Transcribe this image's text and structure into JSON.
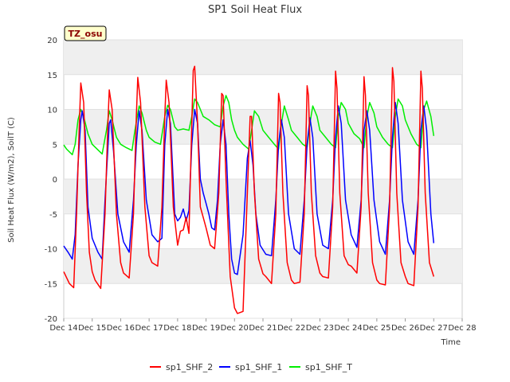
{
  "chart_data": {
    "type": "line",
    "title": "SP1 Soil Heat Flux",
    "xlabel": "Time",
    "ylabel": "Soil Heat Flux (W/m2), SoilT (C)",
    "ylim": [
      -20,
      20
    ],
    "xlim": [
      14,
      28
    ],
    "grid": "horizontal bands",
    "legend_position": "bottom",
    "badge": "TZ_osu",
    "x_ticks": [
      {
        "v": 14,
        "label": "Dec 14"
      },
      {
        "v": 15,
        "label": "Dec 15"
      },
      {
        "v": 16,
        "label": "Dec 16"
      },
      {
        "v": 17,
        "label": "Dec 17"
      },
      {
        "v": 18,
        "label": "Dec 18"
      },
      {
        "v": 19,
        "label": "Dec 19"
      },
      {
        "v": 20,
        "label": "Dec 20"
      },
      {
        "v": 21,
        "label": "Dec 21"
      },
      {
        "v": 22,
        "label": "Dec 22"
      },
      {
        "v": 23,
        "label": "Dec 23"
      },
      {
        "v": 24,
        "label": "Dec 24"
      },
      {
        "v": 25,
        "label": "Dec 25"
      },
      {
        "v": 26,
        "label": "Dec 26"
      },
      {
        "v": 27,
        "label": "Dec 27"
      },
      {
        "v": 28,
        "label": "Dec 28"
      }
    ],
    "y_ticks": [
      -20,
      -15,
      -10,
      -5,
      0,
      5,
      10,
      15,
      20
    ],
    "series": [
      {
        "name": "sp1_SHF_2",
        "color": "#ff0000",
        "x": [
          14.0,
          14.2,
          14.35,
          14.45,
          14.55,
          14.6,
          14.7,
          14.8,
          14.9,
          15.0,
          15.1,
          15.3,
          15.45,
          15.55,
          15.6,
          15.7,
          15.85,
          16.0,
          16.1,
          16.3,
          16.45,
          16.55,
          16.6,
          16.7,
          16.85,
          17.0,
          17.1,
          17.3,
          17.45,
          17.55,
          17.6,
          17.7,
          17.85,
          18.0,
          18.1,
          18.2,
          18.3,
          18.4,
          18.5,
          18.55,
          18.6,
          18.7,
          18.8,
          18.9,
          19.0,
          19.15,
          19.3,
          19.45,
          19.55,
          19.6,
          19.7,
          19.85,
          20.0,
          20.1,
          20.3,
          20.45,
          20.55,
          20.6,
          20.7,
          20.85,
          21.0,
          21.1,
          21.3,
          21.45,
          21.55,
          21.6,
          21.7,
          21.85,
          22.0,
          22.1,
          22.3,
          22.45,
          22.55,
          22.6,
          22.7,
          22.85,
          23.0,
          23.1,
          23.3,
          23.45,
          23.55,
          23.6,
          23.7,
          23.85,
          24.0,
          24.1,
          24.3,
          24.45,
          24.55,
          24.6,
          24.7,
          24.85,
          25.0,
          25.1,
          25.3,
          25.45,
          25.55,
          25.6,
          25.7,
          25.85,
          26.0,
          26.1,
          26.3,
          26.45,
          26.55,
          26.6,
          26.7,
          26.85,
          27.0
        ],
        "y": [
          -13.3,
          -15.0,
          -15.6,
          -5.0,
          8.0,
          13.8,
          11.0,
          -2.0,
          -10.5,
          -13.3,
          -14.5,
          -15.7,
          -5.0,
          8.0,
          12.8,
          10.0,
          -5.0,
          -12.0,
          -13.5,
          -14.2,
          -5.0,
          9.0,
          14.6,
          11.0,
          -4.0,
          -11.0,
          -12.0,
          -12.5,
          -4.0,
          9.0,
          14.2,
          11.0,
          -4.0,
          -9.5,
          -7.5,
          -7.3,
          -5.5,
          -7.8,
          8.0,
          15.6,
          16.2,
          8.0,
          -4.0,
          -5.5,
          -7.0,
          -9.5,
          -10.0,
          -2.0,
          12.3,
          12.0,
          0.0,
          -14.0,
          -18.5,
          -19.3,
          -19.0,
          -2.0,
          9.0,
          9.0,
          -2.0,
          -11.5,
          -13.6,
          -14.0,
          -15.0,
          -5.0,
          12.3,
          11.0,
          -2.0,
          -12.0,
          -14.5,
          -15.0,
          -14.8,
          -5.0,
          13.4,
          12.0,
          -2.0,
          -11.0,
          -13.5,
          -14.0,
          -14.2,
          -4.0,
          15.5,
          13.0,
          -2.0,
          -11.0,
          -12.3,
          -12.5,
          -13.5,
          -4.0,
          14.7,
          12.0,
          -2.0,
          -12.0,
          -14.5,
          -15.0,
          -15.2,
          -4.0,
          16.0,
          14.0,
          -2.0,
          -12.0,
          -14.0,
          -15.0,
          -15.3,
          -4.0,
          15.5,
          13.0,
          -2.0,
          -12.0,
          -14.0
        ]
      },
      {
        "name": "sp1_SHF_1",
        "color": "#0000ff",
        "x": [
          14.0,
          14.15,
          14.3,
          14.4,
          14.5,
          14.6,
          14.65,
          14.75,
          14.85,
          15.0,
          15.2,
          15.35,
          15.45,
          15.6,
          15.65,
          15.75,
          15.9,
          16.1,
          16.3,
          16.45,
          16.55,
          16.65,
          16.75,
          16.9,
          17.1,
          17.3,
          17.45,
          17.55,
          17.65,
          17.75,
          17.9,
          18.0,
          18.1,
          18.2,
          18.3,
          18.4,
          18.5,
          18.6,
          18.7,
          18.8,
          18.9,
          19.0,
          19.1,
          19.2,
          19.3,
          19.4,
          19.5,
          19.6,
          19.7,
          19.8,
          19.9,
          20.0,
          20.1,
          20.3,
          20.45,
          20.55,
          20.65,
          20.75,
          20.9,
          21.1,
          21.3,
          21.45,
          21.55,
          21.65,
          21.75,
          21.9,
          22.1,
          22.3,
          22.45,
          22.55,
          22.65,
          22.75,
          22.9,
          23.1,
          23.3,
          23.45,
          23.55,
          23.65,
          23.75,
          23.9,
          24.1,
          24.3,
          24.45,
          24.55,
          24.65,
          24.75,
          24.9,
          25.1,
          25.3,
          25.45,
          25.55,
          25.65,
          25.75,
          25.9,
          26.1,
          26.3,
          26.45,
          26.55,
          26.65,
          26.75,
          26.9,
          27.0
        ],
        "y": [
          -9.6,
          -10.5,
          -11.5,
          -8.0,
          2.0,
          8.5,
          9.8,
          7.0,
          -4.0,
          -8.5,
          -10.5,
          -11.5,
          -3.0,
          8.0,
          8.5,
          4.0,
          -5.0,
          -9.0,
          -10.5,
          -3.0,
          5.0,
          9.8,
          7.0,
          -3.0,
          -8.0,
          -9.0,
          -8.5,
          5.0,
          10.0,
          8.0,
          -5.0,
          -6.0,
          -5.5,
          -4.3,
          -6.0,
          -4.5,
          5.0,
          10.0,
          8.0,
          0.0,
          -2.0,
          -3.5,
          -5.0,
          -7.0,
          -7.3,
          -3.0,
          5.0,
          8.5,
          5.0,
          -5.0,
          -11.5,
          -13.5,
          -13.7,
          -8.0,
          3.0,
          5.5,
          2.0,
          -5.0,
          -9.5,
          -10.8,
          -11.0,
          -3.0,
          5.0,
          8.5,
          6.0,
          -5.0,
          -10.0,
          -10.8,
          -3.0,
          5.0,
          8.8,
          6.0,
          -5.0,
          -9.5,
          -10.0,
          -3.0,
          6.0,
          10.5,
          8.0,
          -3.0,
          -8.0,
          -9.8,
          -3.0,
          7.0,
          9.8,
          7.0,
          -3.0,
          -9.0,
          -10.8,
          -3.0,
          6.0,
          11.0,
          8.0,
          -3.0,
          -9.0,
          -10.8,
          -3.0,
          7.0,
          10.5,
          7.0,
          -5.0,
          -9.2
        ]
      },
      {
        "name": "sp1_SHF_T",
        "color": "#00ee00",
        "x": [
          14.0,
          14.1,
          14.3,
          14.4,
          14.5,
          14.6,
          14.7,
          14.85,
          15.0,
          15.2,
          15.35,
          15.5,
          15.6,
          15.7,
          15.85,
          16.0,
          16.2,
          16.4,
          16.5,
          16.65,
          16.75,
          16.9,
          17.0,
          17.2,
          17.4,
          17.55,
          17.65,
          17.75,
          17.9,
          18.0,
          18.2,
          18.4,
          18.5,
          18.6,
          18.7,
          18.8,
          18.9,
          19.1,
          19.3,
          19.5,
          19.6,
          19.7,
          19.8,
          19.9,
          20.0,
          20.1,
          20.3,
          20.5,
          20.6,
          20.7,
          20.85,
          21.0,
          21.2,
          21.4,
          21.55,
          21.65,
          21.75,
          21.9,
          22.0,
          22.2,
          22.4,
          22.55,
          22.65,
          22.75,
          22.9,
          23.0,
          23.2,
          23.4,
          23.55,
          23.65,
          23.75,
          23.9,
          24.0,
          24.2,
          24.4,
          24.55,
          24.65,
          24.75,
          24.9,
          25.0,
          25.2,
          25.4,
          25.55,
          25.65,
          25.75,
          25.9,
          26.0,
          26.2,
          26.4,
          26.55,
          26.65,
          26.75,
          26.9,
          27.0
        ],
        "y": [
          4.9,
          4.3,
          3.5,
          5.0,
          8.5,
          10.0,
          9.0,
          6.5,
          5.0,
          4.2,
          3.6,
          7.0,
          9.8,
          8.5,
          6.0,
          5.0,
          4.5,
          4.1,
          7.0,
          10.5,
          9.5,
          7.0,
          6.0,
          5.3,
          5.0,
          9.0,
          10.6,
          10.0,
          7.5,
          7.0,
          7.2,
          7.0,
          9.0,
          11.5,
          11.0,
          10.0,
          9.0,
          8.5,
          7.8,
          7.5,
          10.5,
          12.0,
          11.0,
          8.5,
          7.0,
          6.0,
          5.0,
          4.3,
          7.0,
          9.8,
          9.0,
          7.0,
          6.0,
          5.0,
          4.3,
          8.0,
          10.5,
          8.5,
          7.0,
          6.0,
          5.0,
          4.6,
          8.0,
          10.5,
          9.0,
          7.0,
          6.0,
          5.0,
          4.5,
          9.0,
          11.0,
          10.0,
          8.0,
          6.5,
          5.8,
          4.5,
          9.0,
          11.0,
          9.5,
          7.5,
          6.0,
          5.0,
          4.5,
          9.0,
          11.5,
          10.5,
          8.5,
          6.5,
          5.0,
          4.5,
          10.0,
          11.2,
          9.0,
          6.2
        ]
      }
    ]
  }
}
